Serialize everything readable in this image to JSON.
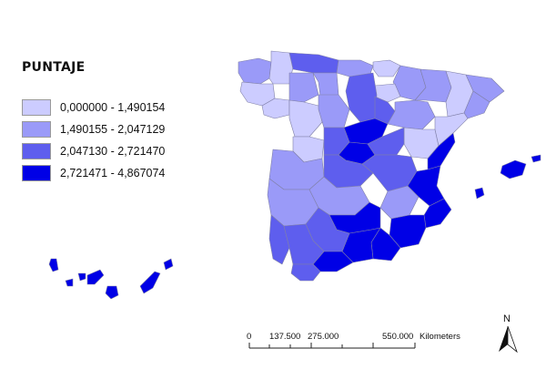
{
  "legend": {
    "title": "PUNTAJE",
    "items": [
      {
        "label": "0,000000 - 1,490154",
        "color": "#ccccff"
      },
      {
        "label": "1,490155 - 2,047129",
        "color": "#9a9af8"
      },
      {
        "label": "2,047130 - 2,721470",
        "color": "#5e5eee"
      },
      {
        "label": "2,721471 - 4,867074",
        "color": "#0000e6"
      }
    ]
  },
  "scale_bar": {
    "ticks": [
      "0",
      "137.500",
      "275.000",
      "550.000"
    ],
    "unit": "Kilometers"
  },
  "north_arrow": {
    "label": "N",
    "icon": "north-arrow-icon"
  },
  "colors": {
    "border": "#8080a8"
  }
}
